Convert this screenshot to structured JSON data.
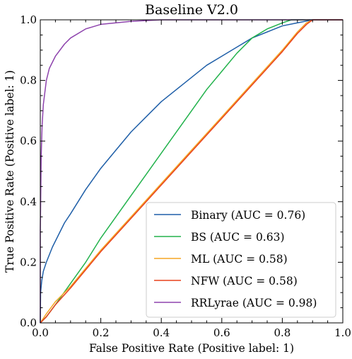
{
  "chart_data": {
    "type": "line",
    "title": "Baseline V2.0",
    "xlabel": "False Positive Rate (Positive label: 1)",
    "ylabel": "True Positive Rate (Positive label: 1)",
    "xlim": [
      0.0,
      1.0
    ],
    "ylim": [
      0.0,
      1.0
    ],
    "x_ticks": [
      "0.0",
      "0.2",
      "0.4",
      "0.6",
      "0.8",
      "1.0"
    ],
    "y_ticks": [
      "0.0",
      "0.2",
      "0.4",
      "0.6",
      "0.8",
      "1.0"
    ],
    "grid": false,
    "legend_position": "bottom-right",
    "series": [
      {
        "name": "Binary (AUC = 0.76)",
        "color": "#1f5fa8",
        "points": [
          [
            0,
            0
          ],
          [
            0.001,
            0.1
          ],
          [
            0.005,
            0.14
          ],
          [
            0.01,
            0.17
          ],
          [
            0.02,
            0.2
          ],
          [
            0.04,
            0.25
          ],
          [
            0.06,
            0.29
          ],
          [
            0.08,
            0.33
          ],
          [
            0.1,
            0.36
          ],
          [
            0.15,
            0.44
          ],
          [
            0.2,
            0.51
          ],
          [
            0.25,
            0.57
          ],
          [
            0.3,
            0.63
          ],
          [
            0.35,
            0.68
          ],
          [
            0.4,
            0.73
          ],
          [
            0.45,
            0.77
          ],
          [
            0.5,
            0.81
          ],
          [
            0.55,
            0.85
          ],
          [
            0.6,
            0.88
          ],
          [
            0.65,
            0.91
          ],
          [
            0.7,
            0.94
          ],
          [
            0.75,
            0.96
          ],
          [
            0.8,
            0.98
          ],
          [
            0.85,
            0.99
          ],
          [
            0.9,
            1.0
          ],
          [
            1.0,
            1.0
          ]
        ]
      },
      {
        "name": "BS (AUC = 0.63)",
        "color": "#22b24c",
        "points": [
          [
            0,
            0
          ],
          [
            0.02,
            0.02
          ],
          [
            0.05,
            0.06
          ],
          [
            0.1,
            0.13
          ],
          [
            0.15,
            0.2
          ],
          [
            0.2,
            0.28
          ],
          [
            0.25,
            0.35
          ],
          [
            0.3,
            0.42
          ],
          [
            0.35,
            0.49
          ],
          [
            0.4,
            0.56
          ],
          [
            0.45,
            0.63
          ],
          [
            0.5,
            0.7
          ],
          [
            0.55,
            0.77
          ],
          [
            0.6,
            0.83
          ],
          [
            0.65,
            0.89
          ],
          [
            0.7,
            0.94
          ],
          [
            0.75,
            0.97
          ],
          [
            0.8,
            0.99
          ],
          [
            0.83,
            1.0
          ],
          [
            1.0,
            1.0
          ]
        ]
      },
      {
        "name": "ML (AUC = 0.58)",
        "color": "#f5a623",
        "points": [
          [
            0,
            0
          ],
          [
            0.02,
            0.03
          ],
          [
            0.05,
            0.07
          ],
          [
            0.1,
            0.12
          ],
          [
            0.2,
            0.24
          ],
          [
            0.3,
            0.35
          ],
          [
            0.4,
            0.46
          ],
          [
            0.5,
            0.57
          ],
          [
            0.6,
            0.68
          ],
          [
            0.7,
            0.79
          ],
          [
            0.8,
            0.9
          ],
          [
            0.85,
            0.96
          ],
          [
            0.88,
            0.99
          ],
          [
            0.9,
            1.0
          ],
          [
            1.0,
            1.0
          ]
        ]
      },
      {
        "name": "NFW (AUC = 0.58)",
        "color": "#e8401c",
        "points": [
          [
            0,
            0
          ],
          [
            0.02,
            0.02
          ],
          [
            0.05,
            0.06
          ],
          [
            0.1,
            0.115
          ],
          [
            0.2,
            0.235
          ],
          [
            0.3,
            0.345
          ],
          [
            0.4,
            0.455
          ],
          [
            0.5,
            0.565
          ],
          [
            0.6,
            0.675
          ],
          [
            0.7,
            0.785
          ],
          [
            0.8,
            0.895
          ],
          [
            0.85,
            0.955
          ],
          [
            0.88,
            0.985
          ],
          [
            0.9,
            1.0
          ],
          [
            1.0,
            1.0
          ]
        ]
      },
      {
        "name": "RRLyrae (AUC = 0.98)",
        "color": "#8e44ad",
        "points": [
          [
            0,
            0
          ],
          [
            0.0,
            0.3
          ],
          [
            0.003,
            0.55
          ],
          [
            0.006,
            0.65
          ],
          [
            0.01,
            0.72
          ],
          [
            0.02,
            0.8
          ],
          [
            0.03,
            0.84
          ],
          [
            0.05,
            0.88
          ],
          [
            0.08,
            0.92
          ],
          [
            0.1,
            0.94
          ],
          [
            0.15,
            0.97
          ],
          [
            0.2,
            0.985
          ],
          [
            0.3,
            0.995
          ],
          [
            0.4,
            1.0
          ],
          [
            1.0,
            1.0
          ]
        ]
      }
    ]
  }
}
